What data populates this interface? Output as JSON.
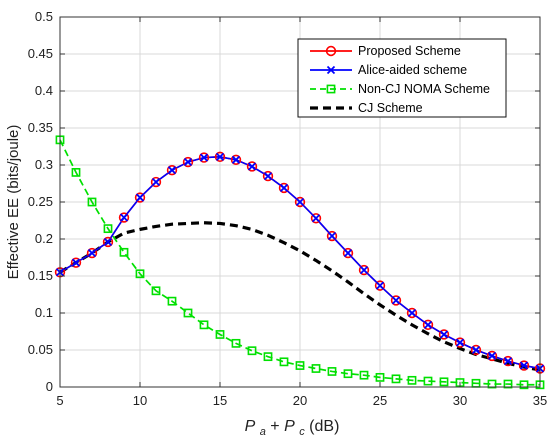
{
  "chart_data": {
    "type": "line",
    "xlabel": {
      "italic_a": "P",
      "sub_a": "a",
      "plus": " + ",
      "italic_c": "P",
      "sub_c": "c",
      "unit": " (dB)"
    },
    "ylabel": "Effective EE (bits/joule)",
    "xlim": [
      5,
      35
    ],
    "ylim": [
      0,
      0.5
    ],
    "xticks": [
      5,
      10,
      15,
      20,
      25,
      30,
      35
    ],
    "yticks": [
      0,
      0.05,
      0.1,
      0.15,
      0.2,
      0.25,
      0.3,
      0.35,
      0.4,
      0.45,
      0.5
    ],
    "grid": true,
    "legend_position": "top-right",
    "x": [
      5,
      6,
      7,
      8,
      9,
      10,
      11,
      12,
      13,
      14,
      15,
      16,
      17,
      18,
      19,
      20,
      21,
      22,
      23,
      24,
      25,
      26,
      27,
      28,
      29,
      30,
      31,
      32,
      33,
      34,
      35
    ],
    "series": [
      {
        "name": "Proposed Scheme",
        "color": "#ff0000",
        "line_style": "solid",
        "marker": "circle",
        "values": [
          0.155,
          0.168,
          0.181,
          0.196,
          0.229,
          0.256,
          0.277,
          0.293,
          0.304,
          0.31,
          0.311,
          0.307,
          0.298,
          0.285,
          0.269,
          0.25,
          0.228,
          0.204,
          0.181,
          0.158,
          0.137,
          0.117,
          0.1,
          0.084,
          0.071,
          0.06,
          0.05,
          0.042,
          0.035,
          0.029,
          0.025
        ]
      },
      {
        "name": "Alice-aided scheme",
        "color": "#0000ff",
        "line_style": "solid",
        "marker": "x",
        "values": [
          0.155,
          0.168,
          0.181,
          0.196,
          0.229,
          0.256,
          0.277,
          0.293,
          0.304,
          0.31,
          0.311,
          0.307,
          0.298,
          0.285,
          0.269,
          0.25,
          0.228,
          0.204,
          0.181,
          0.158,
          0.137,
          0.117,
          0.1,
          0.084,
          0.071,
          0.06,
          0.05,
          0.042,
          0.035,
          0.029,
          0.025
        ]
      },
      {
        "name": "Non-CJ NOMA Scheme",
        "color": "#00e000",
        "line_style": "dashed",
        "marker": "square",
        "values": [
          0.334,
          0.29,
          0.25,
          0.214,
          0.182,
          0.153,
          0.13,
          0.116,
          0.1,
          0.084,
          0.071,
          0.059,
          0.049,
          0.041,
          0.034,
          0.029,
          0.025,
          0.021,
          0.018,
          0.016,
          0.013,
          0.011,
          0.009,
          0.008,
          0.007,
          0.006,
          0.005,
          0.004,
          0.004,
          0.003,
          0.003
        ]
      },
      {
        "name": "CJ Scheme",
        "color": "#000000",
        "line_style": "dashed",
        "marker": "none",
        "values": [
          0.155,
          0.168,
          0.181,
          0.196,
          0.208,
          0.213,
          0.217,
          0.22,
          0.221,
          0.222,
          0.221,
          0.218,
          0.213,
          0.205,
          0.195,
          0.184,
          0.171,
          0.157,
          0.142,
          0.126,
          0.111,
          0.097,
          0.084,
          0.072,
          0.061,
          0.052,
          0.044,
          0.038,
          0.032,
          0.027,
          0.023
        ]
      }
    ]
  }
}
